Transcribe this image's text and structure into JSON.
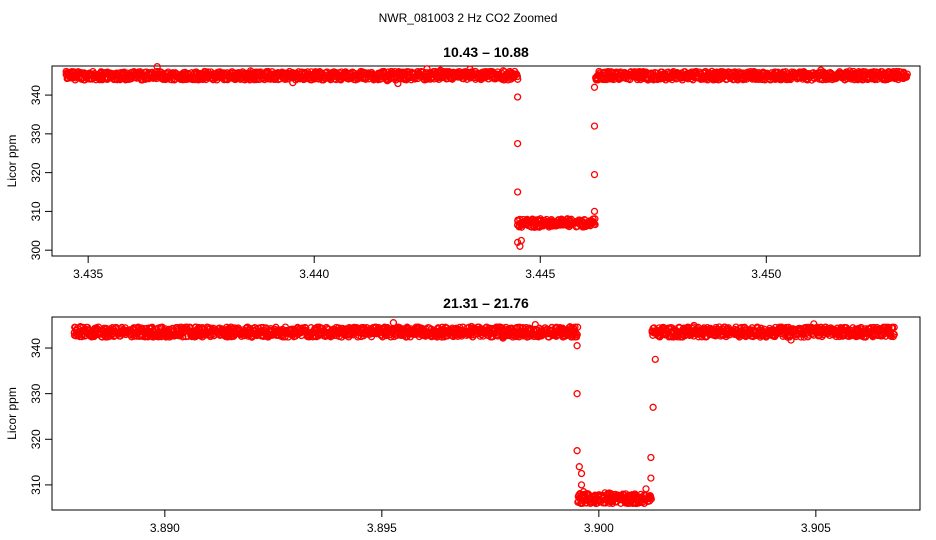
{
  "figure_title": "NWR_081003  2 Hz CO2 Zoomed",
  "colors": {
    "points": "#ff0000",
    "axis": "#000000",
    "background": "#ffffff"
  },
  "chart_data": [
    {
      "type": "scatter",
      "title": "10.43 – 10.88",
      "xlabel": "",
      "ylabel": "Licor ppm",
      "xlim": [
        3.4342,
        3.4534
      ],
      "ylim": [
        298.5,
        347.5
      ],
      "x_ticks": [
        "3.435",
        "3.440",
        "3.445",
        "3.450"
      ],
      "y_ticks": [
        "300",
        "310",
        "320",
        "330",
        "340"
      ],
      "grid": false,
      "marker": "open-circle",
      "x_range": [
        3.4345,
        3.4531
      ],
      "baseline_ppm": 345,
      "dip_ppm": 307,
      "dip_start_x": 3.4445,
      "dip_end_x": 3.4462,
      "transition_points_down": [
        [
          3.4445,
          339.5
        ],
        [
          3.4445,
          327.5
        ],
        [
          3.4445,
          315
        ],
        [
          3.4445,
          306.5
        ],
        [
          3.4445,
          302
        ],
        [
          3.44455,
          301
        ],
        [
          3.44458,
          302.5
        ]
      ],
      "transition_points_up": [
        [
          3.4462,
          310
        ],
        [
          3.4462,
          319.5
        ],
        [
          3.4462,
          332
        ],
        [
          3.4462,
          342
        ]
      ]
    },
    {
      "type": "scatter",
      "title": "21.31 – 21.76",
      "xlabel": "",
      "ylabel": "Licor ppm",
      "xlim": [
        3.8874,
        3.9074
      ],
      "ylim": [
        304.5,
        346.8
      ],
      "x_ticks": [
        "3.890",
        "3.895",
        "3.900",
        "3.905"
      ],
      "y_ticks": [
        "310",
        "320",
        "330",
        "340"
      ],
      "grid": false,
      "marker": "open-circle",
      "x_range": [
        3.8879,
        3.9068
      ],
      "baseline_ppm": 343.5,
      "dip_ppm": 307,
      "dip_start_x": 3.8995,
      "dip_end_x": 3.9012,
      "transition_points_down": [
        [
          3.8995,
          340.5
        ],
        [
          3.8995,
          330
        ],
        [
          3.8995,
          317.5
        ],
        [
          3.89955,
          314
        ],
        [
          3.8996,
          312.5
        ],
        [
          3.8996,
          310
        ],
        [
          3.89965,
          308.5
        ]
      ],
      "transition_points_up": [
        [
          3.9012,
          311.5
        ],
        [
          3.9012,
          316
        ],
        [
          3.90125,
          327
        ],
        [
          3.9013,
          337.5
        ]
      ]
    }
  ]
}
